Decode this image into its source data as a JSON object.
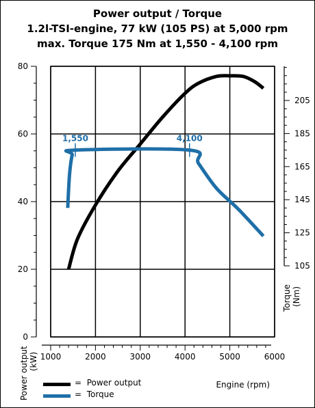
{
  "title_lines": [
    "Power output / Torque",
    "1.2l-TSI-engine, 77 kW (105 PS) at 5,000 rpm",
    "max. Torque 175 Nm at 1,550 - 4,100 rpm"
  ],
  "legend": [
    {
      "symbol": "=",
      "label": "Power output",
      "color": "#000000"
    },
    {
      "symbol": "=",
      "label": "Torque",
      "color": "#1f6fa8"
    }
  ],
  "chart_data": {
    "type": "line",
    "grid": true,
    "legend_position": "bottom-left",
    "x": {
      "label": "Engine (rpm)",
      "ticks": [
        1000,
        2000,
        3000,
        4000,
        5000,
        6000
      ],
      "range": [
        1000,
        6000
      ]
    },
    "y_left": {
      "label": "Power output (kW)",
      "ticks": [
        0,
        20,
        40,
        60,
        80
      ],
      "range": [
        0,
        80
      ]
    },
    "y_right": {
      "label": "Torque (Nm)",
      "ticks": [
        105,
        125,
        145,
        165,
        185,
        205
      ],
      "range": [
        105,
        205
      ]
    },
    "series": [
      {
        "name": "Power output",
        "axis": "left",
        "color": "#000000",
        "x": [
          1400,
          1600,
          2000,
          2500,
          3000,
          3500,
          4000,
          4300,
          4700,
          5000,
          5300,
          5550,
          5750
        ],
        "y": [
          20,
          29,
          39,
          49,
          57,
          65,
          72,
          75,
          77,
          77.2,
          77,
          75.5,
          73.5
        ]
      },
      {
        "name": "Torque",
        "axis": "right",
        "color": "#1f6fa8",
        "x": [
          1380,
          1420,
          1480,
          1550,
          4100,
          4300,
          4700,
          5200,
          5750
        ],
        "y": [
          140,
          160,
          172,
          175,
          175,
          167,
          152,
          139,
          123
        ]
      }
    ],
    "annotations": [
      {
        "x": 1550,
        "axis": "right",
        "y": 175,
        "label": "1,550"
      },
      {
        "x": 4100,
        "axis": "right",
        "y": 175,
        "label": "4,100"
      }
    ]
  }
}
